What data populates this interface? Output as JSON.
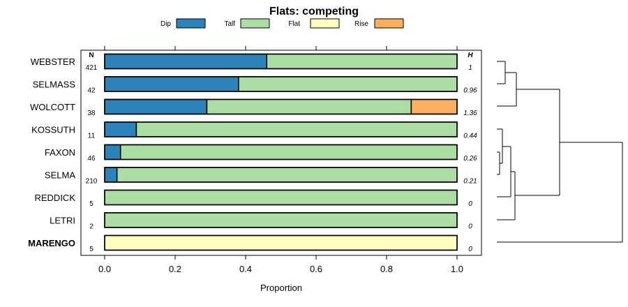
{
  "chart_data": {
    "type": "bar",
    "stacked": true,
    "orientation": "horizontal",
    "title": "Flats: competing",
    "xlabel": "Proportion",
    "xlim": [
      0,
      1
    ],
    "xticks": [
      "0.0",
      "0.2",
      "0.4",
      "0.6",
      "0.8",
      "1.0"
    ],
    "n_header": "N",
    "h_header": "H",
    "legend": [
      {
        "name": "Dip",
        "color": "#2b83ba"
      },
      {
        "name": "Talf",
        "color": "#abdda4"
      },
      {
        "name": "Flat",
        "color": "#ffffbf"
      },
      {
        "name": "Rise",
        "color": "#fdae61"
      }
    ],
    "categories": [
      "WEBSTER",
      "SELMASS",
      "WOLCOTT",
      "KOSSUTH",
      "FAXON",
      "SELMA",
      "REDDICK",
      "LETRI",
      "MARENGO"
    ],
    "highlighted": "MARENGO",
    "n": [
      "421",
      "42",
      "38",
      "11",
      "46",
      "210",
      "5",
      "2",
      "5"
    ],
    "h": [
      "1",
      "0.96",
      "1.36",
      "0.44",
      "0.26",
      "0.21",
      "0",
      "0",
      "0"
    ],
    "series": [
      {
        "name": "Dip",
        "values": [
          0.46,
          0.38,
          0.29,
          0.09,
          0.045,
          0.035,
          0,
          0,
          0
        ]
      },
      {
        "name": "Talf",
        "values": [
          0.54,
          0.62,
          0.58,
          0.91,
          0.955,
          0.965,
          1,
          1,
          0
        ]
      },
      {
        "name": "Flat",
        "values": [
          0,
          0,
          0,
          0,
          0,
          0,
          0,
          0,
          1
        ]
      },
      {
        "name": "Rise",
        "values": [
          0,
          0,
          0.13,
          0,
          0,
          0,
          0,
          0,
          0
        ]
      }
    ]
  }
}
